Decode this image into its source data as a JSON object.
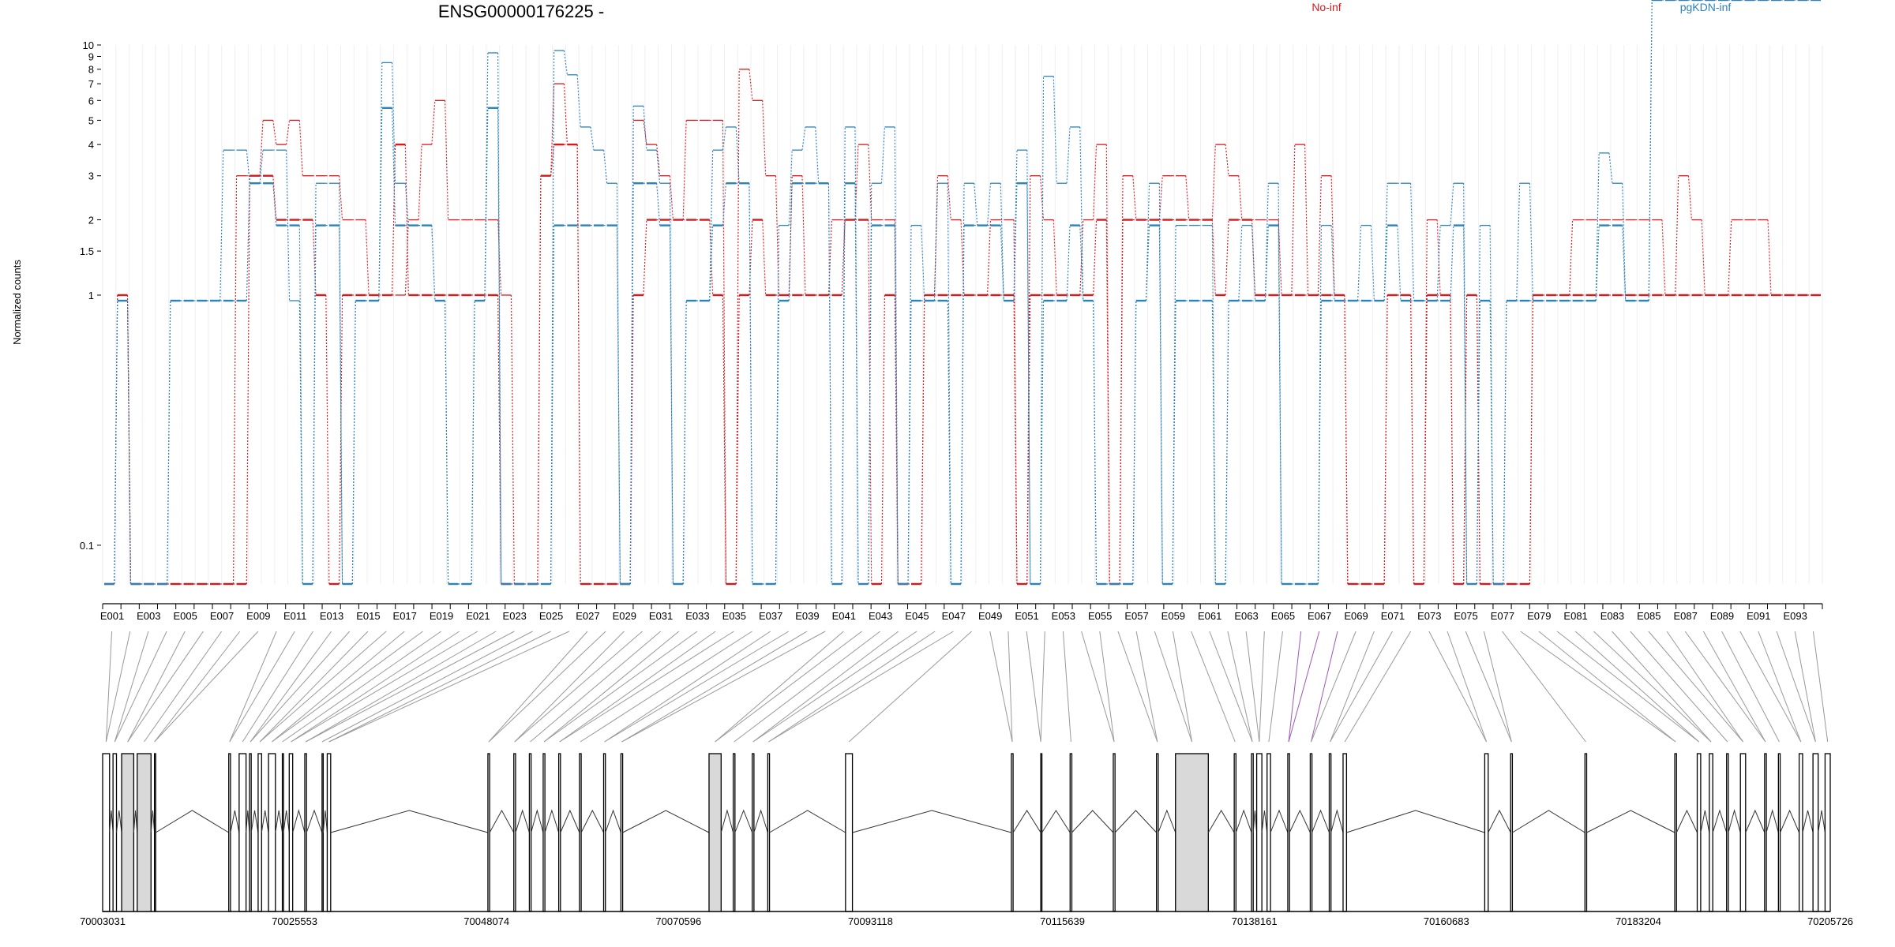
{
  "chart_data": {
    "type": "line",
    "title": "ENSG00000176225 -",
    "ylabel": "Normalized counts",
    "xlabel": "",
    "y_scale": "log",
    "y_ticks": [
      0.1,
      1,
      1.5,
      2,
      3,
      4,
      5,
      6,
      7,
      8,
      9,
      10
    ],
    "ylim": [
      0.07,
      10
    ],
    "grid": true,
    "legend_placement": "top",
    "colors": {
      "No-inf": "#d7191c",
      "pgKDN-inf": "#2b83ba"
    },
    "exon_tick_labels": [
      "E001",
      "E003",
      "E005",
      "E007",
      "E009",
      "E011",
      "E013",
      "E015",
      "E017",
      "E019",
      "E021",
      "E023",
      "E025",
      "E027",
      "E029",
      "E031",
      "E033",
      "E035",
      "E037",
      "E039",
      "E041",
      "E043",
      "E045",
      "E047",
      "E049",
      "E051",
      "E053",
      "E055",
      "E057",
      "E059",
      "E061",
      "E063",
      "E065",
      "E067",
      "E069",
      "E071",
      "E073",
      "E075",
      "E077",
      "E079",
      "E081",
      "E083",
      "E085",
      "E087",
      "E089",
      "E091",
      "E093"
    ],
    "genomic_coordinates": [
      "70003031",
      "70025553",
      "70048074",
      "70070596",
      "70093118",
      "70115639",
      "70138161",
      "70160683",
      "70183204",
      "70205726"
    ],
    "series": [
      {
        "name": "No-inf",
        "values": [
          0.07,
          1,
          0.07,
          0.07,
          0.07,
          0.07,
          0.07,
          0.07,
          0.07,
          0.07,
          3,
          3,
          5,
          4,
          5,
          3,
          3,
          3,
          2,
          2,
          1,
          1,
          1,
          2,
          4,
          6,
          2,
          2,
          2,
          2,
          1,
          0.07,
          0.07,
          3,
          7,
          4,
          0.07,
          0.07,
          0.07,
          0.07,
          5,
          4,
          3,
          2,
          5,
          5,
          5,
          0.07,
          8,
          6,
          3,
          1,
          3,
          1,
          1,
          2,
          2,
          4,
          2,
          2,
          0.07,
          0.07,
          1,
          3,
          2,
          1,
          1,
          2,
          2,
          0.07,
          3,
          2,
          1,
          1,
          2,
          4,
          0.07,
          3,
          2,
          2,
          3,
          3,
          2,
          2,
          4,
          3,
          2,
          2,
          2,
          1,
          4,
          1,
          3,
          1,
          0.07,
          0.07,
          0.07,
          1,
          1,
          0.07,
          2,
          1,
          0.07,
          1,
          0.07,
          0.07,
          0.07,
          0.07,
          1,
          1,
          1,
          2,
          2,
          2,
          2,
          2,
          2,
          2,
          1,
          3,
          2,
          1,
          1,
          2,
          2,
          2,
          1,
          1,
          1,
          1
        ],
        "style": "dashed"
      },
      {
        "name": "No-inf",
        "values": [
          0.07,
          1,
          0.07,
          0.07,
          0.07,
          0.07,
          0.07,
          0.07,
          0.07,
          0.07,
          0.07,
          3,
          3,
          2,
          2,
          2,
          1,
          0.07,
          1,
          1,
          1,
          1,
          4,
          1,
          1,
          1,
          1,
          1,
          1,
          1,
          0.07,
          0.07,
          0.07,
          3,
          4,
          4,
          0.07,
          0.07,
          0.07,
          0.07,
          1,
          2,
          2,
          2,
          2,
          2,
          1,
          0.07,
          1,
          2,
          1,
          1,
          1,
          1,
          1,
          1,
          2,
          2,
          0.07,
          1,
          0.07,
          0.07,
          1,
          1,
          1,
          1,
          1,
          1,
          1,
          0.07,
          1,
          1,
          1,
          1,
          1,
          2,
          0.07,
          2,
          2,
          2,
          2,
          2,
          2,
          2,
          1,
          2,
          2,
          1,
          1,
          1,
          1,
          1,
          1,
          1,
          0.07,
          0.07,
          0.07,
          1,
          1,
          0.07,
          1,
          1,
          0.07,
          1,
          0.07,
          0.07,
          0.07,
          0.07,
          1,
          1,
          1,
          1,
          1,
          1,
          1,
          1,
          1,
          1,
          1,
          1,
          1,
          1,
          1,
          1,
          1,
          1,
          1,
          1,
          1,
          1
        ],
        "style": "solid"
      },
      {
        "name": "pgKDN-inf",
        "values": [
          0.07,
          0.95,
          0.07,
          0.07,
          0.07,
          0.95,
          0.95,
          0.95,
          0.95,
          3.8,
          3.8,
          2.8,
          3.8,
          3.8,
          0.95,
          0.07,
          2.8,
          2.8,
          0.07,
          0.95,
          0.95,
          8.5,
          2.8,
          1.9,
          1.9,
          0.95,
          0.07,
          0.07,
          0.95,
          9.3,
          0.07,
          0.07,
          0.07,
          0.07,
          9.5,
          7.6,
          4.7,
          3.8,
          2.8,
          0.07,
          5.7,
          3.8,
          2.8,
          0.07,
          0.95,
          0.95,
          3.8,
          4.7,
          2.8,
          0.07,
          0.07,
          1.9,
          3.8,
          4.7,
          2.8,
          0.07,
          4.7,
          0.07,
          2.8,
          4.7,
          0.07,
          1.9,
          0.95,
          2.8,
          0.07,
          2.8,
          1.9,
          2.8,
          0.95,
          3.8,
          0.07,
          7.5,
          2.8,
          4.7,
          0.95,
          0.07,
          0.07,
          0.07,
          0.95,
          2.8,
          0.07,
          1.9,
          1.9,
          1.9,
          0.07,
          0.95,
          1.9,
          0.95,
          2.8,
          0.07,
          0.07,
          0.07,
          1.9,
          0.95,
          0.95,
          1.9,
          0.95,
          2.8,
          2.8,
          0.95,
          0.95,
          1.9,
          2.8,
          0.07,
          1.9,
          0.07,
          0.95,
          2.8,
          0.95,
          0.95,
          0.95,
          0.95,
          0.95,
          3.7,
          2.8,
          0.95,
          0.95
        ],
        "style": "dashed"
      },
      {
        "name": "pgKDN-inf",
        "values": [
          0.07,
          0.95,
          0.07,
          0.07,
          0.07,
          0.95,
          0.95,
          0.95,
          0.95,
          0.95,
          0.95,
          2.8,
          2.8,
          1.9,
          1.9,
          0.07,
          1.9,
          1.9,
          0.07,
          0.95,
          0.95,
          5.6,
          1.9,
          1.9,
          1.9,
          0.95,
          0.07,
          0.07,
          0.95,
          5.6,
          0.07,
          0.07,
          0.07,
          0.07,
          1.9,
          1.9,
          1.9,
          1.9,
          1.9,
          0.07,
          2.8,
          2.8,
          1.9,
          0.07,
          0.95,
          0.95,
          1.9,
          2.8,
          2.8,
          0.07,
          0.07,
          0.95,
          2.8,
          2.8,
          2.8,
          0.07,
          2.8,
          0.07,
          1.9,
          1.9,
          0.07,
          0.95,
          0.95,
          0.95,
          0.07,
          1.9,
          1.9,
          1.9,
          0.95,
          2.8,
          0.07,
          0.95,
          0.95,
          1.9,
          0.95,
          0.07,
          0.07,
          0.07,
          0.95,
          1.9,
          0.07,
          0.95,
          0.95,
          0.95,
          0.07,
          0.95,
          0.95,
          0.95,
          1.9,
          0.07,
          0.07,
          0.07,
          0.95,
          0.95,
          0.95,
          0.95,
          0.95,
          1.9,
          0.95,
          0.95,
          0.95,
          0.95,
          1.9,
          0.07,
          0.95,
          0.07,
          0.95,
          0.95,
          0.95,
          0.95,
          0.95,
          0.95,
          0.95,
          1.9,
          1.9,
          0.95,
          0.95
        ],
        "style": "solid"
      }
    ]
  }
}
